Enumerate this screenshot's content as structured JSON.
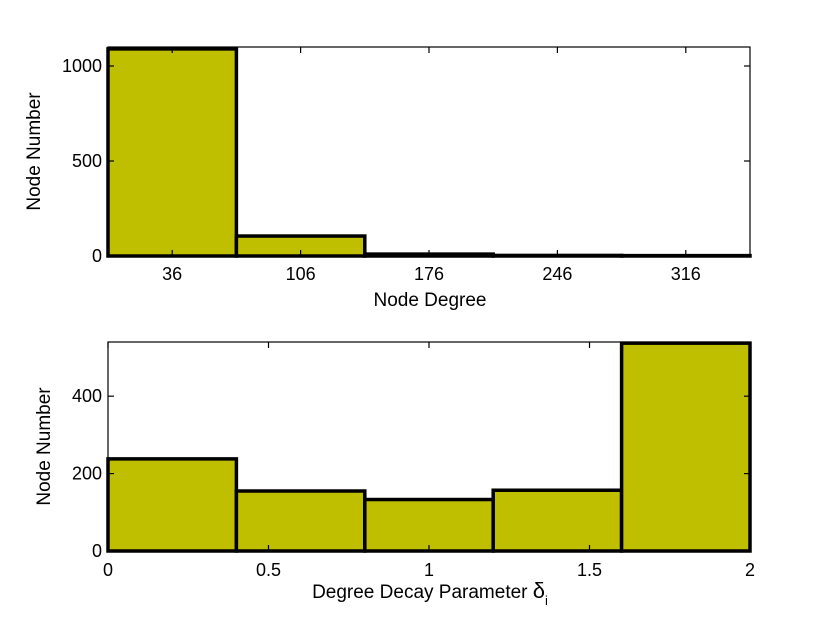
{
  "chart_data": [
    {
      "type": "bar",
      "categories": [
        "36",
        "106",
        "176",
        "246",
        "316"
      ],
      "values": [
        1090,
        105,
        10,
        3,
        2
      ],
      "xlabel": "Node Degree",
      "ylabel": "Node Number",
      "ylim": [
        0,
        1100
      ],
      "yticks": [
        "0",
        "500",
        "1000"
      ],
      "bar_color": "#bfbf00",
      "grid": false
    },
    {
      "type": "bar",
      "bin_edges": [
        0,
        0.4,
        0.8,
        1.2,
        1.6,
        2.0
      ],
      "values": [
        238,
        155,
        133,
        157,
        537
      ],
      "xlabel": "Degree Decay Parameter",
      "xlabel_symbol": "δ",
      "xlabel_subscript": "i",
      "ylabel": "Node Number",
      "xlim": [
        0,
        2
      ],
      "ylim": [
        0,
        540
      ],
      "xticks": [
        "0",
        "0.5",
        "1",
        "1.5",
        "2"
      ],
      "yticks": [
        "0",
        "200",
        "400"
      ],
      "bar_color": "#bfbf00",
      "grid": false
    }
  ]
}
